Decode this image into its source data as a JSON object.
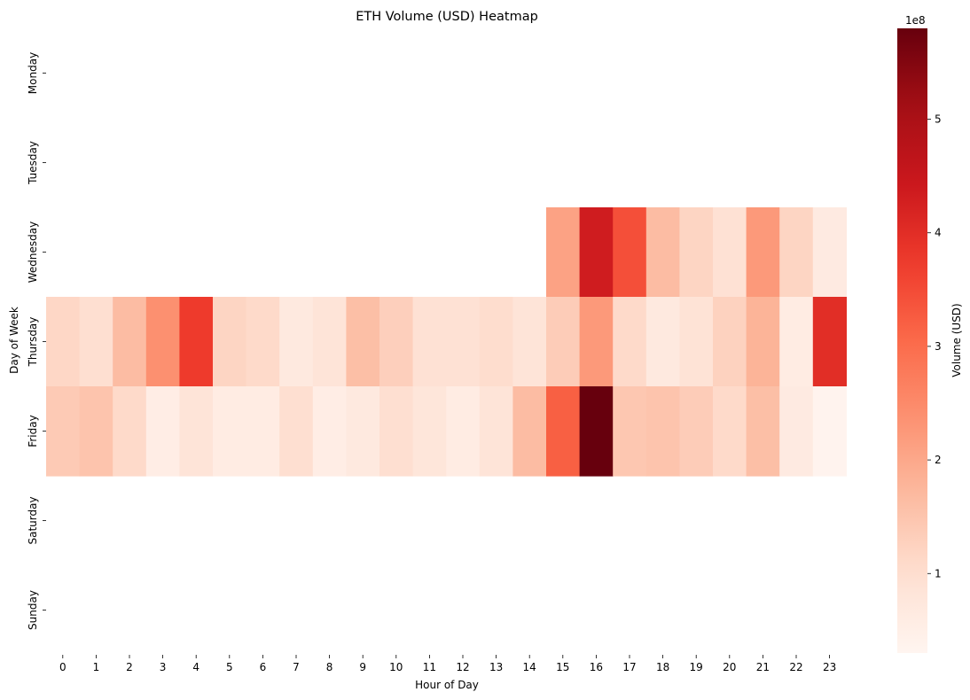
{
  "chart_data": {
    "type": "heatmap",
    "title": "ETH Volume (USD) Heatmap",
    "xlabel": "Hour of Day",
    "ylabel": "Day of Week",
    "x_categories": [
      "0",
      "1",
      "2",
      "3",
      "4",
      "5",
      "6",
      "7",
      "8",
      "9",
      "10",
      "11",
      "12",
      "13",
      "14",
      "15",
      "16",
      "17",
      "18",
      "19",
      "20",
      "21",
      "22",
      "23"
    ],
    "y_categories": [
      "Monday",
      "Tuesday",
      "Wednesday",
      "Thursday",
      "Friday",
      "Saturday",
      "Sunday"
    ],
    "values": [
      [
        null,
        null,
        null,
        null,
        null,
        null,
        null,
        null,
        null,
        null,
        null,
        null,
        null,
        null,
        null,
        null,
        null,
        null,
        null,
        null,
        null,
        null,
        null,
        null
      ],
      [
        null,
        null,
        null,
        null,
        null,
        null,
        null,
        null,
        null,
        null,
        null,
        null,
        null,
        null,
        null,
        null,
        null,
        null,
        null,
        null,
        null,
        null,
        null,
        null
      ],
      [
        null,
        null,
        null,
        null,
        null,
        null,
        null,
        null,
        null,
        null,
        null,
        null,
        null,
        null,
        null,
        210000000,
        435000000,
        345000000,
        165000000,
        120000000,
        95000000,
        225000000,
        120000000,
        65000000
      ],
      [
        115000000,
        100000000,
        165000000,
        240000000,
        375000000,
        120000000,
        110000000,
        70000000,
        85000000,
        160000000,
        130000000,
        95000000,
        95000000,
        105000000,
        85000000,
        135000000,
        225000000,
        110000000,
        70000000,
        90000000,
        125000000,
        180000000,
        60000000,
        400000000
      ],
      [
        140000000,
        150000000,
        110000000,
        55000000,
        85000000,
        60000000,
        60000000,
        100000000,
        55000000,
        70000000,
        100000000,
        80000000,
        60000000,
        85000000,
        165000000,
        320000000,
        580000000,
        145000000,
        150000000,
        135000000,
        110000000,
        160000000,
        65000000,
        35000000
      ],
      [
        null,
        null,
        null,
        null,
        null,
        null,
        null,
        null,
        null,
        null,
        null,
        null,
        null,
        null,
        null,
        null,
        null,
        null,
        null,
        null,
        null,
        null,
        null,
        null
      ],
      [
        null,
        null,
        null,
        null,
        null,
        null,
        null,
        null,
        null,
        null,
        null,
        null,
        null,
        null,
        null,
        null,
        null,
        null,
        null,
        null,
        null,
        null,
        null,
        null
      ]
    ],
    "colormap": "Reds",
    "color_range": [
      30000000,
      580000000
    ],
    "colorbar": {
      "label": "Volume (USD)",
      "ticks": [
        1,
        2,
        3,
        4,
        5
      ],
      "tick_labels": [
        "1",
        "2",
        "3",
        "4",
        "5"
      ],
      "offset_text": "1e8"
    },
    "grid": false
  }
}
